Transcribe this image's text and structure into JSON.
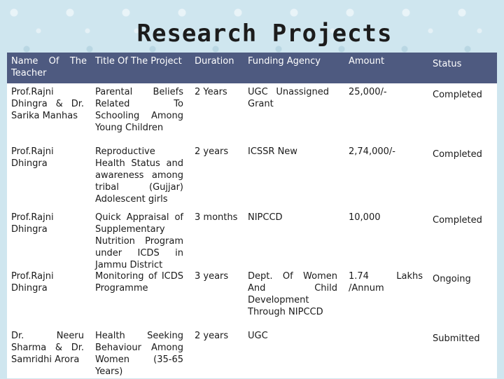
{
  "title": "Research Projects",
  "table": {
    "headers": [
      "Name Of The Teacher",
      "Title Of The Project",
      "Duration",
      "Funding Agency",
      "Amount",
      "Status"
    ],
    "rows": [
      {
        "teacher": "Prof.Rajni Dhingra & Dr. Sarika Manhas",
        "title": "Parental Beliefs Related To Schooling Among Young Children",
        "duration": "2 Years",
        "agency": "UGC Unassigned Grant",
        "amount": "25,000/-",
        "status": "Completed"
      },
      {
        "teacher": "Prof.Rajni Dhingra",
        "title": "Reproductive Health Status and awareness among tribal (Gujjar) Adolescent girls",
        "duration": "2 years",
        "agency": "ICSSR New",
        "amount": "2,74,000/-",
        "status": "Completed"
      },
      {
        "teacher": "Prof.Rajni Dhingra",
        "title": "Quick Appraisal of Supplementary Nutrition Program under ICDS in Jammu District",
        "duration": "3 months",
        "agency": "NIPCCD",
        "amount": "10,000",
        "status": "Completed"
      },
      {
        "teacher": "Prof.Rajni Dhingra",
        "title": "Monitoring of ICDS Programme",
        "duration": "3 years",
        "agency": "Dept. Of Women And Child Development Through NIPCCD",
        "amount": "1.74 Lakhs /Annum",
        "status": "Ongoing"
      },
      {
        "teacher": "Dr. Neeru Sharma & Dr. Samridhi Arora",
        "title": "Health Seeking Behaviour Among Women (35-65 Years)",
        "duration": "2 years",
        "agency": "UGC",
        "amount": "",
        "status": "Submitted"
      }
    ]
  }
}
